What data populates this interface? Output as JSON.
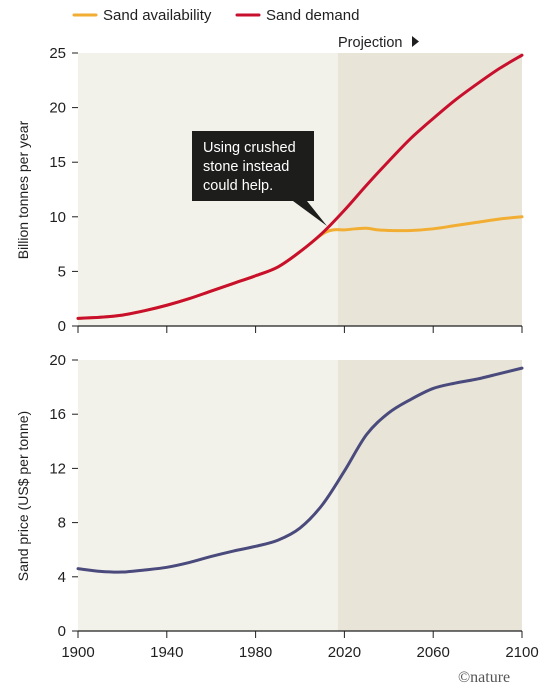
{
  "colors": {
    "availability": "#f2ae33",
    "demand": "#c8102e",
    "price": "#4a4a7c",
    "historical_bg": "#f3f2ea",
    "projection_bg": "#e8e5d8",
    "callout_bg": "#1d1d1b"
  },
  "legend": {
    "availability_label": "Sand availability",
    "demand_label": "Sand demand"
  },
  "projection_label": "Projection",
  "callout": {
    "lines": [
      "Using crushed",
      "stone instead",
      "could help."
    ]
  },
  "credit": "©nature",
  "chart_data": [
    {
      "type": "line",
      "ylabel": "Billion tonnes per year",
      "xlim": [
        1900,
        2100
      ],
      "ylim": [
        0,
        25
      ],
      "yticks": [
        0,
        5,
        10,
        15,
        20,
        25
      ],
      "xticks": [
        1900,
        1940,
        1980,
        2020,
        2060,
        2100
      ],
      "projection_start": 2017,
      "grid": false,
      "legend_position": "top-left",
      "series": [
        {
          "name": "Sand demand",
          "color_key": "demand",
          "x": [
            1900,
            1910,
            1920,
            1930,
            1940,
            1950,
            1960,
            1970,
            1980,
            1990,
            2000,
            2010,
            2020,
            2030,
            2040,
            2050,
            2060,
            2070,
            2080,
            2090,
            2100
          ],
          "y": [
            0.7,
            0.8,
            1.0,
            1.4,
            1.9,
            2.5,
            3.2,
            3.9,
            4.6,
            5.4,
            6.8,
            8.5,
            10.6,
            12.9,
            15.1,
            17.2,
            19.0,
            20.7,
            22.2,
            23.6,
            24.8
          ]
        },
        {
          "name": "Sand availability",
          "color_key": "availability",
          "x": [
            1900,
            1910,
            1920,
            1930,
            1940,
            1950,
            1960,
            1970,
            1980,
            1990,
            2000,
            2010,
            2015,
            2020,
            2025,
            2030,
            2035,
            2040,
            2050,
            2060,
            2070,
            2080,
            2090,
            2100
          ],
          "y": [
            0.7,
            0.8,
            1.0,
            1.4,
            1.9,
            2.5,
            3.2,
            3.9,
            4.6,
            5.4,
            6.8,
            8.4,
            8.8,
            8.8,
            8.9,
            8.95,
            8.8,
            8.75,
            8.75,
            8.9,
            9.2,
            9.5,
            9.8,
            10.0
          ]
        }
      ]
    },
    {
      "type": "line",
      "ylabel": "Sand price (US$ per tonne)",
      "xlim": [
        1900,
        2100
      ],
      "ylim": [
        0,
        20
      ],
      "yticks": [
        0,
        4,
        8,
        12,
        16,
        20
      ],
      "xticks": [
        1900,
        1940,
        1980,
        2020,
        2060,
        2100
      ],
      "projection_start": 2017,
      "grid": false,
      "series": [
        {
          "name": "",
          "color_key": "price",
          "x": [
            1900,
            1910,
            1920,
            1930,
            1940,
            1950,
            1960,
            1970,
            1980,
            1990,
            2000,
            2010,
            2020,
            2030,
            2040,
            2050,
            2060,
            2070,
            2080,
            2090,
            2100
          ],
          "y": [
            4.6,
            4.4,
            4.35,
            4.5,
            4.7,
            5.05,
            5.5,
            5.9,
            6.25,
            6.7,
            7.6,
            9.3,
            11.8,
            14.5,
            16.1,
            17.1,
            17.9,
            18.3,
            18.6,
            19.0,
            19.4
          ]
        }
      ]
    }
  ]
}
